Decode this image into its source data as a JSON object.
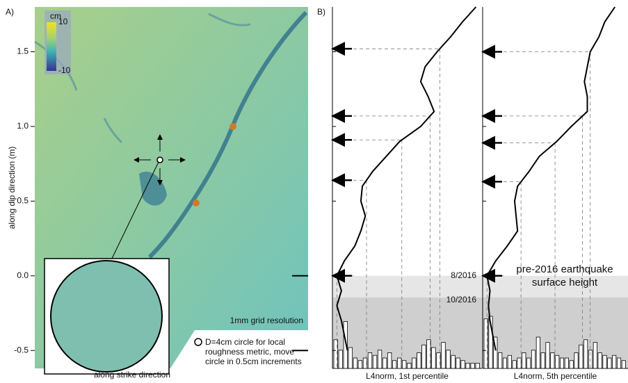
{
  "chart_data": [
    {
      "type": "image",
      "panel": "A)",
      "ylabel": "along dip direction (m)",
      "xlabel": "along strike direction",
      "ylim": [
        -0.62,
        1.8
      ],
      "yticks": [
        -0.5,
        {
          "value": 0,
          "label": "0.0"
        },
        0.5,
        {
          "value": 1,
          "label": "1.0"
        },
        1.5
      ],
      "colorbar": {
        "label": "cm",
        "clim": [
          -10,
          10
        ],
        "ticks": [
          10,
          -10
        ]
      },
      "annotations": [
        "1mm grid resolution",
        "D=4cm circle for local roughness metric, move circle in 0.5cm increments"
      ]
    },
    {
      "type": "line",
      "panel": "B)",
      "xlabel": "L4norm, 1st percentile",
      "color": "#000000",
      "xlim": [
        0,
        1
      ],
      "ylim": [
        -0.62,
        1.8
      ],
      "y": [
        1.8,
        1.7,
        1.6,
        1.5,
        1.4,
        1.3,
        1.2,
        1.1,
        1.0,
        0.9,
        0.8,
        0.7,
        0.6,
        0.5,
        0.4,
        0.3,
        0.2,
        0.1,
        0.0,
        -0.1,
        -0.2,
        -0.3,
        -0.4,
        -0.5
      ],
      "values": [
        0.96,
        0.87,
        0.79,
        0.7,
        0.62,
        0.59,
        0.64,
        0.68,
        0.59,
        0.45,
        0.36,
        0.27,
        0.2,
        0.19,
        0.22,
        0.19,
        0.15,
        0.08,
        0.03,
        0.06,
        0.03,
        0.06,
        0.08,
        0.1
      ],
      "arrows": [
        1.52,
        1.07,
        0.91,
        0.64,
        0.0
      ],
      "bands": [
        {
          "label": "8/2016",
          "from": 0,
          "to": -0.145
        },
        {
          "label": "10/2016",
          "from": -0.145,
          "to": -0.62
        }
      ],
      "histogram": [
        0.55,
        0.35,
        0.9,
        0.4,
        0.2,
        0.15,
        0.2,
        0.3,
        0.25,
        0.35,
        0.2,
        0.3,
        0.15,
        0.2,
        0.15,
        0.1,
        0.2,
        0.3,
        0.45,
        0.55,
        0.4,
        0.3,
        0.5,
        0.35,
        0.25,
        0.2,
        0.15,
        0.1,
        0.1,
        0.1
      ]
    },
    {
      "type": "line",
      "xlabel": "L4norm, 5th percentile",
      "color": "#000000",
      "xlim": [
        0,
        1
      ],
      "ylim": [
        -0.62,
        1.8
      ],
      "y": [
        1.8,
        1.7,
        1.6,
        1.5,
        1.4,
        1.3,
        1.2,
        1.1,
        1.0,
        0.9,
        0.8,
        0.7,
        0.6,
        0.5,
        0.4,
        0.3,
        0.2,
        0.1,
        0.0,
        -0.1,
        -0.2,
        -0.3,
        -0.4,
        -0.5
      ],
      "values": [
        0.91,
        0.84,
        0.8,
        0.74,
        0.72,
        0.7,
        0.72,
        0.72,
        0.61,
        0.51,
        0.39,
        0.32,
        0.24,
        0.22,
        0.23,
        0.24,
        0.17,
        0.09,
        0.03,
        0.05,
        0.04,
        0.05,
        0.07,
        0.09
      ],
      "arrows": [
        1.5,
        1.07,
        0.89,
        0.63,
        0.0
      ],
      "annotation": "pre-2016 earthquake surface height",
      "histogram": [
        0.95,
        1.0,
        0.6,
        0.3,
        0.2,
        0.25,
        0.15,
        0.2,
        0.3,
        0.2,
        0.35,
        0.6,
        0.3,
        0.5,
        0.3,
        0.25,
        0.2,
        0.2,
        0.15,
        0.3,
        0.45,
        0.55,
        0.35,
        0.5,
        0.3,
        0.25,
        0.2,
        0.25,
        0.2,
        0.15
      ]
    }
  ]
}
